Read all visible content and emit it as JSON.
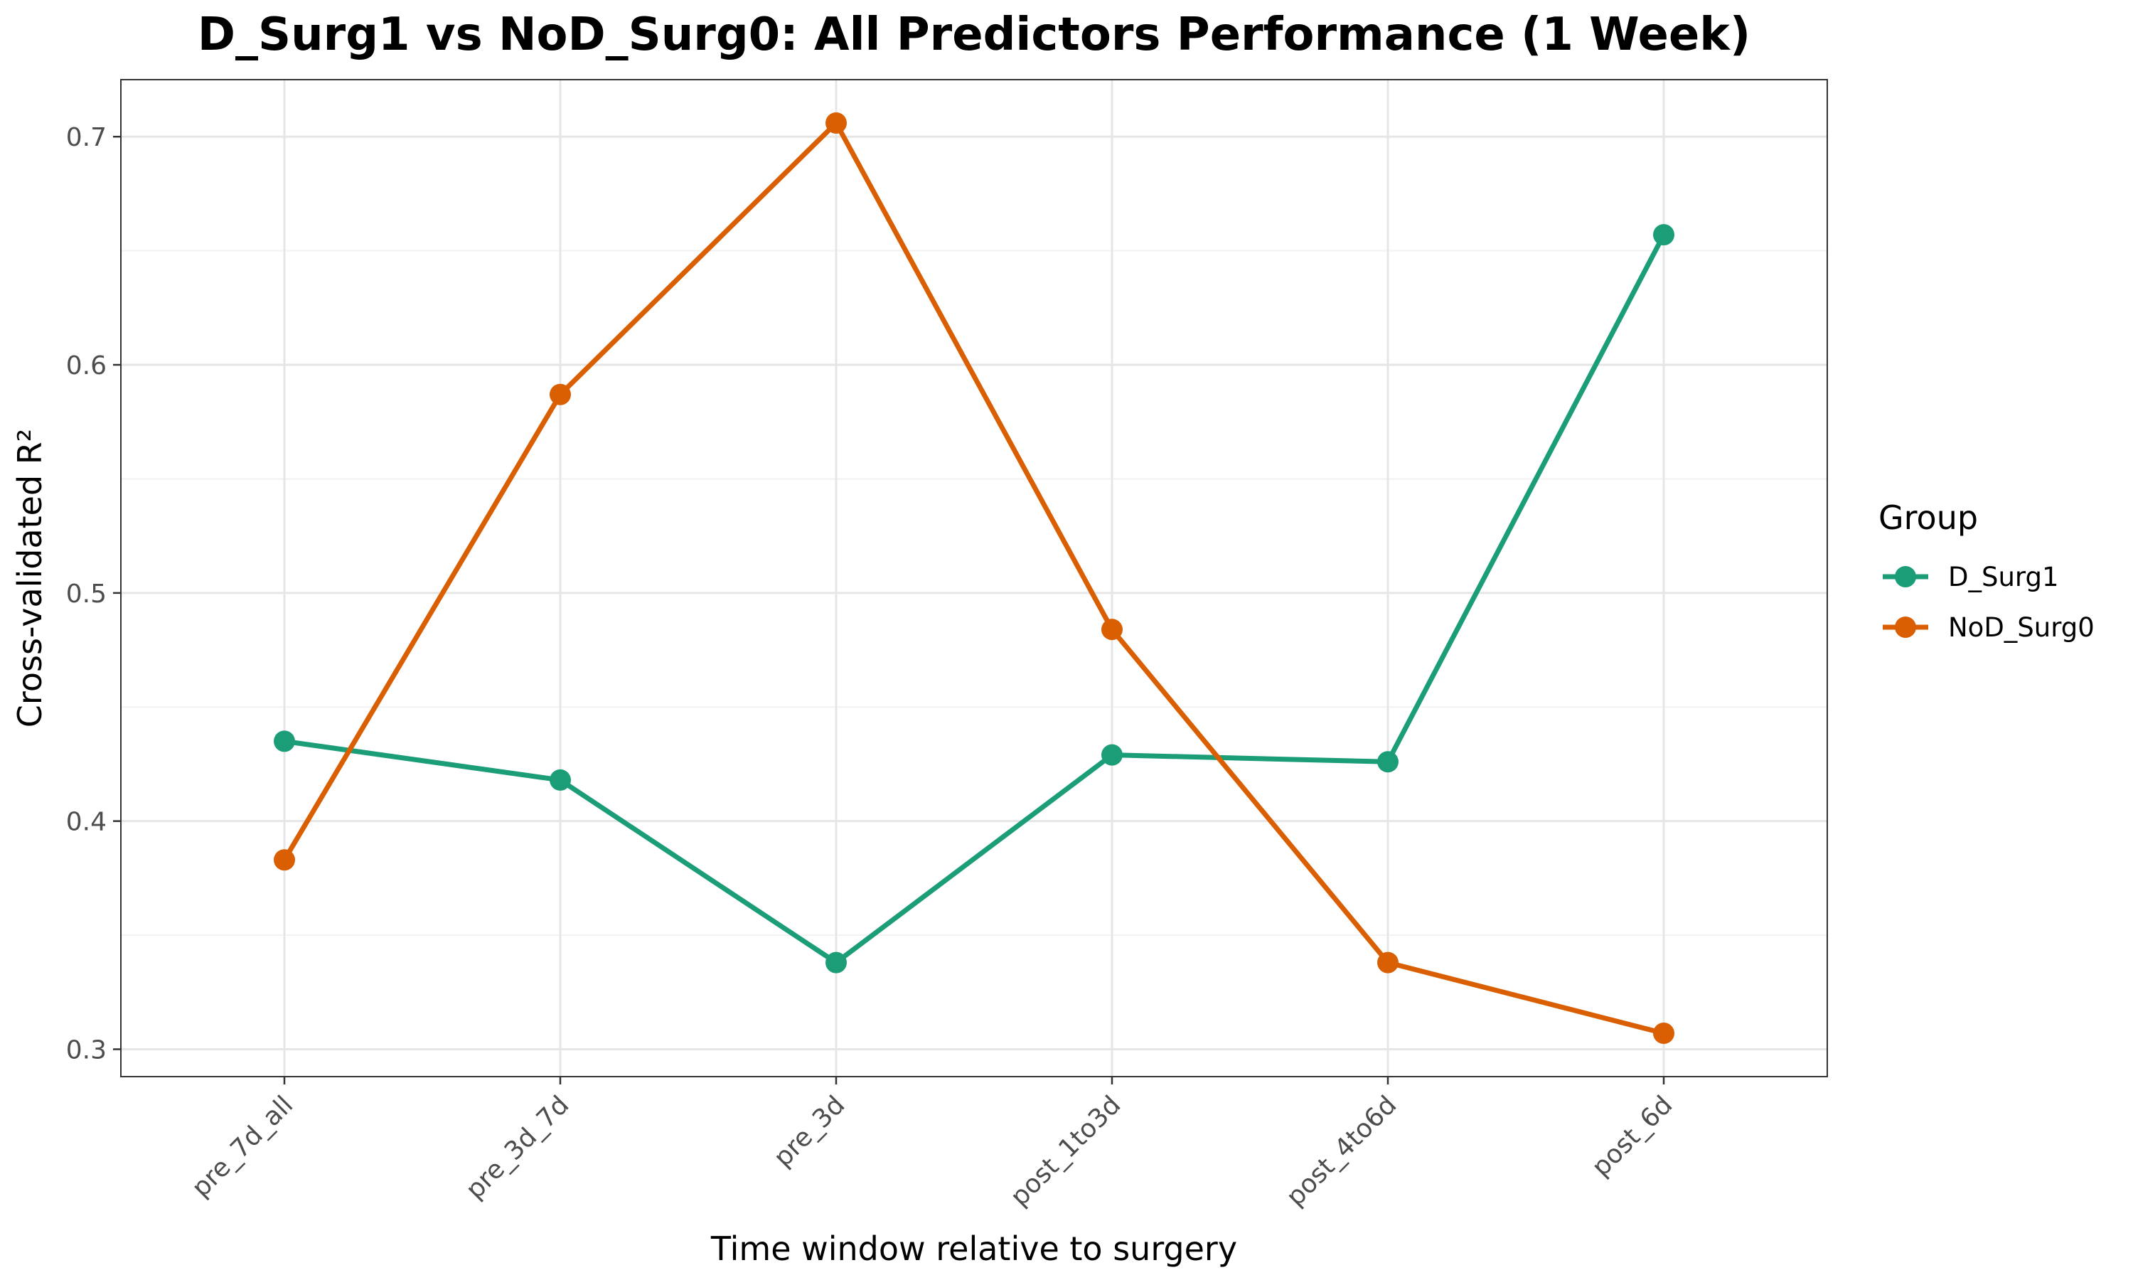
{
  "chart_data": {
    "type": "line",
    "title": "D_Surg1 vs NoD_Surg0: All Predictors Performance (1 Week)",
    "xlabel": "Time window relative to surgery",
    "ylabel": "Cross-validated R²",
    "categories": [
      "pre_7d_all",
      "pre_3d_7d",
      "pre_3d",
      "post_1to3d",
      "post_4to6d",
      "post_6d"
    ],
    "ylim": [
      0.288,
      0.725
    ],
    "yticks": [
      0.3,
      0.4,
      0.5,
      0.6,
      0.7
    ],
    "ytick_labels": [
      "0.3",
      "0.4",
      "0.5",
      "0.6",
      "0.7"
    ],
    "grid": true,
    "legend_position": "right",
    "legend_title": "Group",
    "series": [
      {
        "name": "D_Surg1",
        "color": "#1b9e77",
        "values": [
          0.435,
          0.418,
          0.338,
          0.429,
          0.426,
          0.657
        ]
      },
      {
        "name": "NoD_Surg0",
        "color": "#d95f02",
        "values": [
          0.383,
          0.587,
          0.706,
          0.484,
          0.338,
          0.307
        ]
      }
    ]
  }
}
